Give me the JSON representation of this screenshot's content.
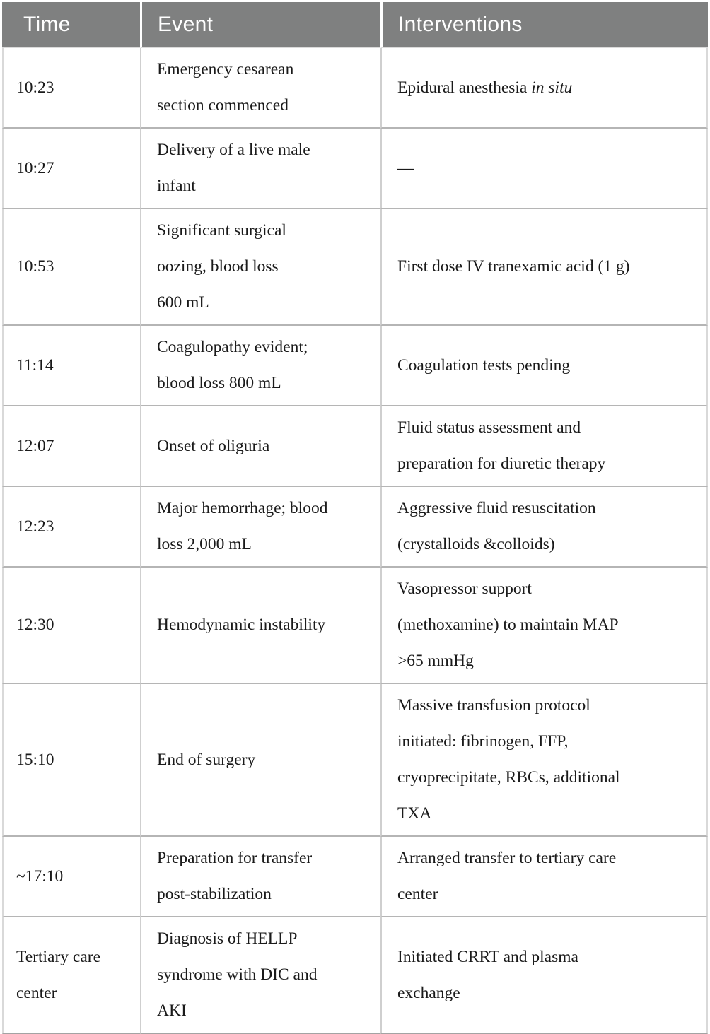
{
  "table": {
    "columns": [
      "Time",
      "Event",
      "Interventions"
    ],
    "header_bg": "#7f8080",
    "header_text_color": "#ffffff",
    "rows": [
      {
        "time": "10:23",
        "event": "Emergency cesarean\nsection commenced",
        "interventions": [
          {
            "text": "Epidural anesthesia ",
            "italic": false
          },
          {
            "text": "in situ",
            "italic": true
          }
        ]
      },
      {
        "time": "10:27",
        "event": "Delivery of a live male\ninfant",
        "interventions": "—"
      },
      {
        "time": "10:53",
        "event": "Significant surgical\noozing, blood loss\n600 mL",
        "interventions": "First dose IV tranexamic acid (1 g)"
      },
      {
        "time": "11:14",
        "event": "Coagulopathy evident;\nblood loss 800 mL",
        "interventions": "Coagulation tests pending"
      },
      {
        "time": "12:07",
        "event": "Onset of oliguria",
        "interventions": "Fluid status assessment and\npreparation for diuretic therapy"
      },
      {
        "time": "12:23",
        "event": "Major hemorrhage; blood\nloss 2,000 mL",
        "interventions": "Aggressive fluid resuscitation\n(crystalloids &colloids)"
      },
      {
        "time": "12:30",
        "event": "Hemodynamic instability",
        "interventions": "Vasopressor support\n(methoxamine) to maintain MAP\n>65 mmHg"
      },
      {
        "time": "15:10",
        "event": "End of surgery",
        "interventions": "Massive transfusion protocol\ninitiated: fibrinogen, FFP,\ncryoprecipitate, RBCs, additional\nTXA"
      },
      {
        "time": "~17:10",
        "event": "Preparation for transfer\npost-stabilization",
        "interventions": "Arranged transfer to tertiary care\ncenter"
      },
      {
        "time": "Tertiary care\ncenter",
        "event": "Diagnosis of HELLP\nsyndrome with DIC and\nAKI",
        "interventions": "Initiated CRRT and plasma\nexchange"
      }
    ]
  }
}
